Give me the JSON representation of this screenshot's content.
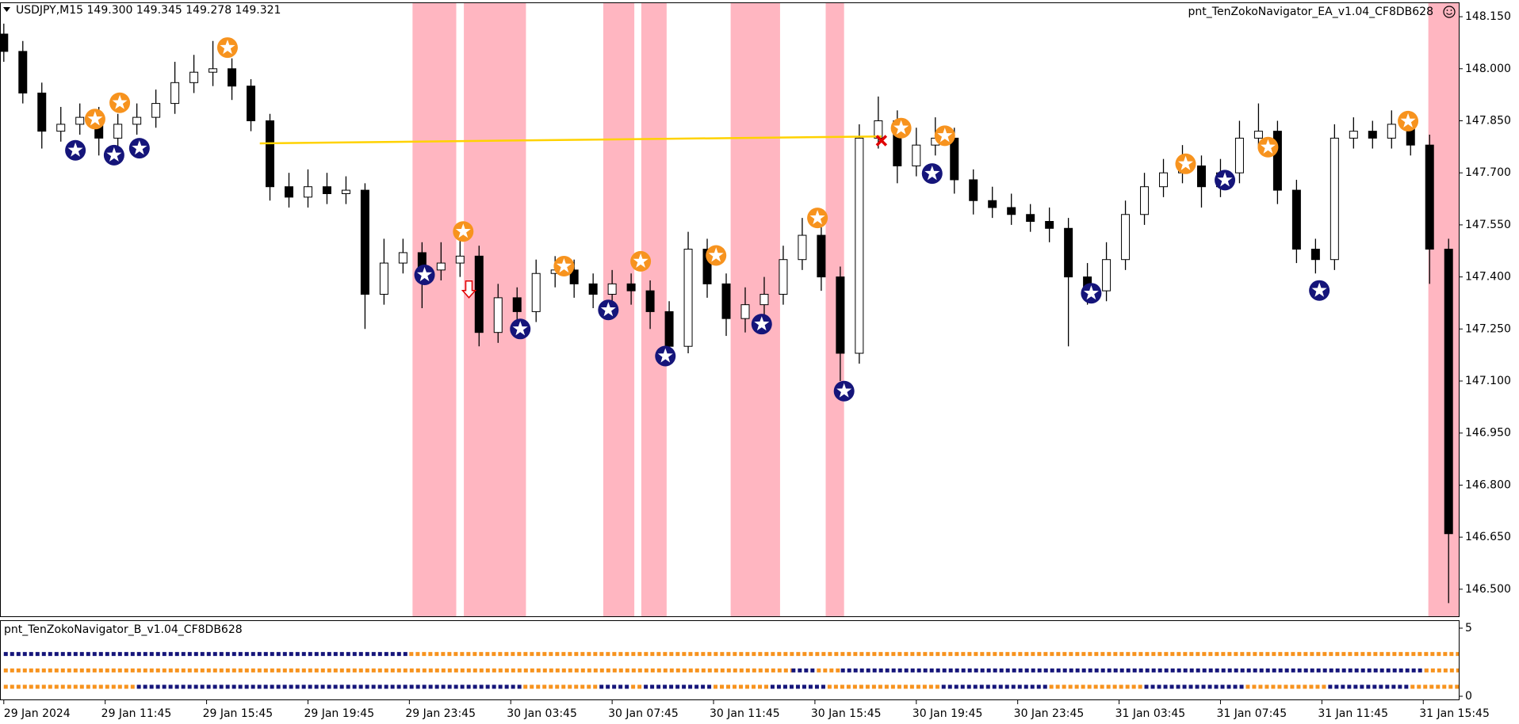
{
  "chart_data": {
    "type": "candlestick",
    "symbol_label": "USDJPY,M15  149.300 149.345 149.278 149.321",
    "ea_label": "pnt_TenZokoNavigator_EA_v1.04_CF8DB628",
    "x": [
      0,
      3,
      6,
      9,
      12,
      15,
      18,
      21,
      24,
      27,
      30,
      33,
      36,
      39,
      42,
      45,
      48,
      51,
      54,
      57,
      60,
      63,
      66,
      69,
      72,
      75,
      78,
      81,
      84,
      87,
      90,
      93,
      96,
      99,
      102,
      105,
      108,
      111,
      114,
      117,
      120,
      123,
      126,
      129,
      132,
      135,
      138,
      141,
      144,
      147,
      150,
      153,
      156,
      159,
      162,
      165,
      168,
      171,
      174,
      177,
      180,
      183,
      186,
      189,
      192,
      195,
      198,
      201,
      204,
      207,
      210,
      213,
      216,
      219,
      222,
      225,
      228
    ],
    "open": [
      148.1,
      148.05,
      147.93,
      147.82,
      147.84,
      147.86,
      147.8,
      147.84,
      147.86,
      147.9,
      147.96,
      147.99,
      148.0,
      147.95,
      147.85,
      147.66,
      147.63,
      147.66,
      147.64,
      147.65,
      147.35,
      147.44,
      147.47,
      147.42,
      147.44,
      147.46,
      147.24,
      147.34,
      147.3,
      147.41,
      147.42,
      147.38,
      147.35,
      147.38,
      147.36,
      147.3,
      147.2,
      147.48,
      147.38,
      147.28,
      147.32,
      147.35,
      147.45,
      147.52,
      147.4,
      147.18,
      147.8,
      147.85,
      147.72,
      147.78,
      147.8,
      147.68,
      147.62,
      147.6,
      147.58,
      147.56,
      147.54,
      147.4,
      147.36,
      147.45,
      147.58,
      147.66,
      147.7,
      147.72,
      147.66,
      147.7,
      147.8,
      147.82,
      147.65,
      147.48,
      147.45,
      147.8,
      147.82,
      147.8,
      147.84,
      147.78,
      147.48
    ],
    "high": [
      148.13,
      148.08,
      147.96,
      147.89,
      147.9,
      147.89,
      147.87,
      147.9,
      147.94,
      148.02,
      148.04,
      148.08,
      148.03,
      147.97,
      147.87,
      147.7,
      147.71,
      147.7,
      147.69,
      147.67,
      147.51,
      147.51,
      147.5,
      147.5,
      147.53,
      147.49,
      147.38,
      147.37,
      147.45,
      147.46,
      147.45,
      147.41,
      147.42,
      147.41,
      147.39,
      147.33,
      147.53,
      147.51,
      147.41,
      147.37,
      147.4,
      147.49,
      147.57,
      147.55,
      147.43,
      147.84,
      147.92,
      147.88,
      147.83,
      147.86,
      147.83,
      147.71,
      147.66,
      147.64,
      147.61,
      147.6,
      147.57,
      147.44,
      147.5,
      147.62,
      147.7,
      147.74,
      147.78,
      147.75,
      147.74,
      147.85,
      147.9,
      147.85,
      147.68,
      147.51,
      147.84,
      147.86,
      147.85,
      147.88,
      147.87,
      147.81,
      147.51
    ],
    "low": [
      148.02,
      147.9,
      147.77,
      147.79,
      147.81,
      147.75,
      147.77,
      147.81,
      147.83,
      147.87,
      147.93,
      147.95,
      147.91,
      147.82,
      147.62,
      147.6,
      147.6,
      147.61,
      147.61,
      147.25,
      147.32,
      147.41,
      147.31,
      147.39,
      147.4,
      147.2,
      147.21,
      147.26,
      147.27,
      147.37,
      147.34,
      147.31,
      147.32,
      147.32,
      147.25,
      147.17,
      147.18,
      147.34,
      147.23,
      147.24,
      147.29,
      147.32,
      147.42,
      147.36,
      147.1,
      147.15,
      147.77,
      147.67,
      147.69,
      147.75,
      147.64,
      147.58,
      147.57,
      147.55,
      147.53,
      147.5,
      147.2,
      147.32,
      147.33,
      147.42,
      147.55,
      147.63,
      147.67,
      147.6,
      147.63,
      147.67,
      147.77,
      147.61,
      147.44,
      147.41,
      147.42,
      147.77,
      147.77,
      147.77,
      147.75,
      147.38,
      146.46
    ],
    "close": [
      148.05,
      147.93,
      147.82,
      147.84,
      147.86,
      147.8,
      147.84,
      147.86,
      147.9,
      147.96,
      147.99,
      148.0,
      147.95,
      147.85,
      147.66,
      147.63,
      147.66,
      147.64,
      147.65,
      147.35,
      147.44,
      147.47,
      147.42,
      147.44,
      147.46,
      147.24,
      147.34,
      147.3,
      147.41,
      147.42,
      147.38,
      147.35,
      147.38,
      147.36,
      147.3,
      147.2,
      147.48,
      147.38,
      147.28,
      147.32,
      147.35,
      147.45,
      147.52,
      147.4,
      147.18,
      147.8,
      147.85,
      147.72,
      147.78,
      147.8,
      147.68,
      147.62,
      147.6,
      147.58,
      147.56,
      147.54,
      147.4,
      147.36,
      147.45,
      147.58,
      147.66,
      147.7,
      147.72,
      147.66,
      147.7,
      147.8,
      147.82,
      147.65,
      147.48,
      147.45,
      147.8,
      147.82,
      147.8,
      147.84,
      147.78,
      147.48,
      146.66
    ],
    "up_color": "#ffffff",
    "down_color": "#000000",
    "xlim": [
      -0.6,
      229.6
    ],
    "xticks": [
      {
        "value": 0,
        "label": "29 Jan 2024"
      },
      {
        "value": 16,
        "label": "29 Jan 11:45"
      },
      {
        "value": 32,
        "label": "29 Jan 15:45"
      },
      {
        "value": 48,
        "label": "29 Jan 19:45"
      },
      {
        "value": 64,
        "label": "29 Jan 23:45"
      },
      {
        "value": 80,
        "label": "30 Jan 03:45"
      },
      {
        "value": 96,
        "label": "30 Jan 07:45"
      },
      {
        "value": 112,
        "label": "30 Jan 11:45"
      },
      {
        "value": 128,
        "label": "30 Jan 15:45"
      },
      {
        "value": 144,
        "label": "30 Jan 19:45"
      },
      {
        "value": 160,
        "label": "30 Jan 23:45"
      },
      {
        "value": 176,
        "label": "31 Jan 03:45"
      },
      {
        "value": 192,
        "label": "31 Jan 07:45"
      },
      {
        "value": 208,
        "label": "31 Jan 11:45"
      },
      {
        "value": 224,
        "label": "31 Jan 15:45"
      }
    ],
    "ylim": [
      146.422,
      148.189
    ],
    "yticks": [
      {
        "value": 148.15,
        "label": "148.150"
      },
      {
        "value": 148.0,
        "label": "148.000"
      },
      {
        "value": 147.85,
        "label": "147.850"
      },
      {
        "value": 147.7,
        "label": "147.700"
      },
      {
        "value": 147.55,
        "label": "147.550"
      },
      {
        "value": 147.4,
        "label": "147.400"
      },
      {
        "value": 147.25,
        "label": "147.250"
      },
      {
        "value": 147.1,
        "label": "147.100"
      },
      {
        "value": 146.95,
        "label": "146.950"
      },
      {
        "value": 146.8,
        "label": "146.800"
      },
      {
        "value": 146.65,
        "label": "146.650"
      },
      {
        "value": 146.5,
        "label": "146.500"
      }
    ],
    "shaded_ranges": [
      [
        64.5,
        71.4
      ],
      [
        72.6,
        82.4
      ],
      [
        94.6,
        99.5
      ],
      [
        100.6,
        104.6
      ],
      [
        114.7,
        122.5
      ],
      [
        129.7,
        132.6
      ],
      [
        224.8,
        229.6
      ]
    ],
    "shade_color": "#ffb6c1",
    "level_line": {
      "x": [
        40.4,
        138.5
      ],
      "y": [
        147.785,
        147.805
      ],
      "color": "#ffd200"
    },
    "sell_markers": {
      "color": "#f7931e",
      "x": [
        14.4,
        18.3,
        35.3,
        72.5,
        88.4,
        100.5,
        112.4,
        128.4,
        141.6,
        148.5,
        186.5,
        199.5,
        221.6
      ],
      "y": [
        147.855,
        147.902,
        148.061,
        147.531,
        147.431,
        147.445,
        147.462,
        147.57,
        147.829,
        147.807,
        147.726,
        147.774,
        147.849
      ]
    },
    "buy_markers": {
      "color": "#15157a",
      "x": [
        11.3,
        17.4,
        21.4,
        66.4,
        81.5,
        95.4,
        104.4,
        119.6,
        132.6,
        146.5,
        171.6,
        192.7,
        207.6
      ],
      "y": [
        147.765,
        147.751,
        147.771,
        147.406,
        147.25,
        147.305,
        147.172,
        147.264,
        147.071,
        147.698,
        147.353,
        147.679,
        147.361
      ]
    },
    "arrow_marker": {
      "color": "#e00000",
      "x": 73.4,
      "y": 147.361
    },
    "cross_marker": {
      "color": "#e00000",
      "x": 138.5,
      "y": 147.793
    },
    "indicator": {
      "title": "pnt_TenZokoNavigator_B_v1.04_CF8DB628",
      "ylim": [
        0,
        5
      ],
      "yticks": [
        5,
        0
      ],
      "rows": [
        {
          "value": 3.1,
          "segments": [
            {
              "from": 0,
              "to": 64,
              "color": "#15157a"
            },
            {
              "from": 64,
              "to": 229.6,
              "color": "#f7931e"
            }
          ]
        },
        {
          "value": 1.9,
          "segments": [
            {
              "from": 0,
              "to": 124.3,
              "color": "#f7931e"
            },
            {
              "from": 124.3,
              "to": 128.3,
              "color": "#15157a"
            },
            {
              "from": 128.3,
              "to": 132.1,
              "color": "#f7931e"
            },
            {
              "from": 132.1,
              "to": 224.2,
              "color": "#15157a"
            },
            {
              "from": 224.2,
              "to": 229.6,
              "color": "#f7931e"
            }
          ]
        },
        {
          "value": 0.7,
          "segments": [
            {
              "from": 0,
              "to": 21,
              "color": "#f7931e"
            },
            {
              "from": 21,
              "to": 82,
              "color": "#15157a"
            },
            {
              "from": 82,
              "to": 94,
              "color": "#f7931e"
            },
            {
              "from": 94,
              "to": 99,
              "color": "#15157a"
            },
            {
              "from": 99,
              "to": 101,
              "color": "#f7931e"
            },
            {
              "from": 101,
              "to": 112,
              "color": "#15157a"
            },
            {
              "from": 112,
              "to": 121,
              "color": "#f7931e"
            },
            {
              "from": 121,
              "to": 130,
              "color": "#15157a"
            },
            {
              "from": 130,
              "to": 148,
              "color": "#f7931e"
            },
            {
              "from": 148,
              "to": 165,
              "color": "#15157a"
            },
            {
              "from": 165,
              "to": 180,
              "color": "#f7931e"
            },
            {
              "from": 180,
              "to": 196,
              "color": "#15157a"
            },
            {
              "from": 196,
              "to": 209,
              "color": "#f7931e"
            },
            {
              "from": 209,
              "to": 222,
              "color": "#15157a"
            },
            {
              "from": 222,
              "to": 229.6,
              "color": "#f7931e"
            }
          ]
        }
      ]
    }
  }
}
